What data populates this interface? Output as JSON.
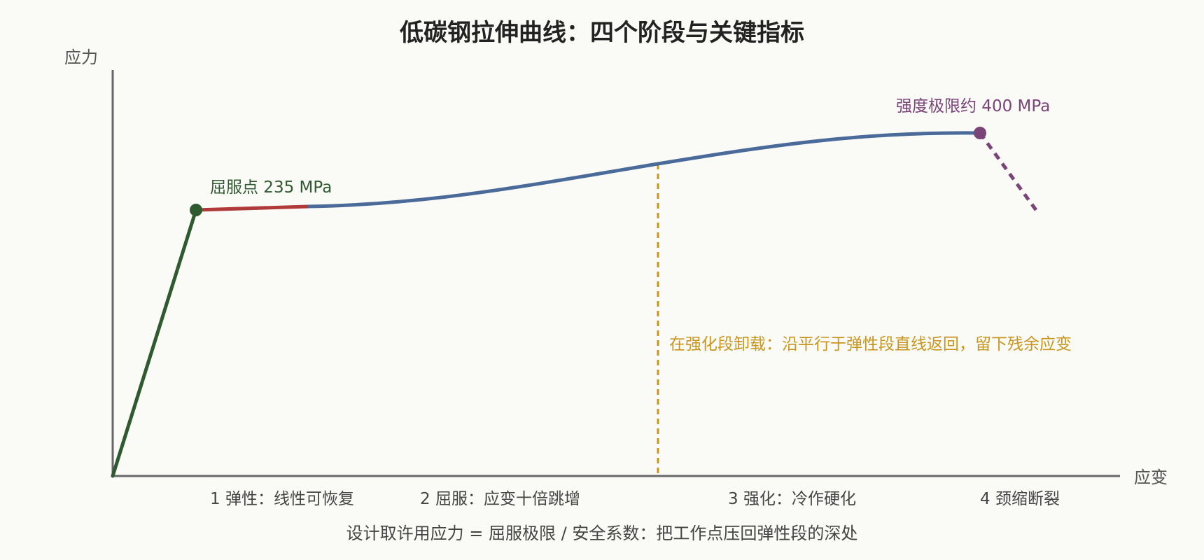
{
  "title": "低碳钢拉伸曲线：四个阶段与关键指标",
  "axes": {
    "y_label": "应力",
    "x_label": "应变"
  },
  "annotations": {
    "yield_point": "屈服点 235 MPa",
    "ultimate_strength": "强度极限约 400 MPa",
    "unloading_note": "在强化段卸载：沿平行于弹性段直线返回，留下残余应变"
  },
  "stages": [
    "1 弹性：线性可恢复",
    "2 屈服：应变十倍跳增",
    "3 强化：冷作硬化",
    "4 颈缩断裂"
  ],
  "footer": "设计取许用应力 = 屈服极限 / 安全系数：把工作点压回弹性段的深处",
  "colors": {
    "background": "#fafaf7",
    "axis": "#666666",
    "text": "#333333",
    "elastic": "#2f5a2f",
    "yield": "#b03a3a",
    "hardening": "#4a6b9a",
    "necking": "#7a4478",
    "unloading": "#c8961e"
  }
}
